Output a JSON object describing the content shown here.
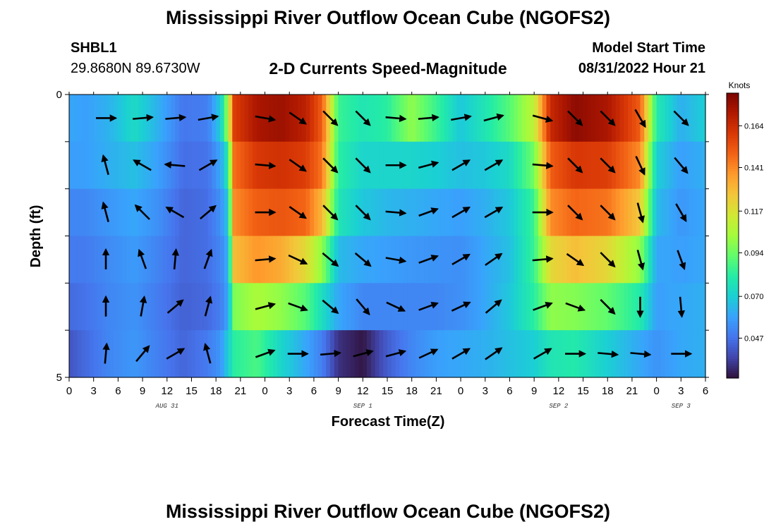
{
  "page": {
    "title": "Mississippi River Outflow Ocean Cube (NGOFS2)",
    "footer_title": "Mississippi River Outflow Ocean Cube (NGOFS2)",
    "station": "SHBL1",
    "location": "29.8680N  89.6730W",
    "plot_title": "2-D Currents Speed-Magnitude",
    "model_start_label": "Model Start Time",
    "model_start_value": "08/31/2022 Hour 21"
  },
  "colors": {
    "colormap": [
      "#30123b",
      "#4145ab",
      "#4675ed",
      "#39a2fc",
      "#1bcfd4",
      "#24eca6",
      "#61fc6c",
      "#a4fc3b",
      "#d1e834",
      "#f3c63a",
      "#fe9b2d",
      "#f36315",
      "#d93806",
      "#b11901",
      "#7a0402"
    ]
  },
  "chart_data": {
    "type": "heatmap",
    "xlabel": "Forecast Time(Z)",
    "ylabel": "Depth (ft)",
    "x_ticks": [
      "0",
      "3",
      "6",
      "9",
      "12",
      "15",
      "18",
      "21",
      "0",
      "3",
      "6",
      "9",
      "12",
      "15",
      "18",
      "21",
      "0",
      "3",
      "6",
      "9",
      "12",
      "15",
      "18",
      "21",
      "0",
      "3",
      "6"
    ],
    "date_labels": [
      {
        "label": "AUG 31",
        "hour": 12
      },
      {
        "label": "SEP 1",
        "hour": 36
      },
      {
        "label": "SEP 2",
        "hour": 60
      },
      {
        "label": "SEP 3",
        "hour": 75
      }
    ],
    "xlim": [
      0,
      78
    ],
    "y_tick_labels": [
      "0",
      "5"
    ],
    "ylim": [
      0,
      5
    ],
    "colorbar": {
      "title": "Knots",
      "tick_labels": [
        "0.164",
        "0.141",
        "0.117",
        "0.094",
        "0.070",
        "0.047"
      ],
      "tick_values": [
        0.164,
        0.141,
        0.117,
        0.094,
        0.07,
        0.047
      ],
      "range": [
        0.025,
        0.182
      ]
    },
    "speed_keyframes": [
      {
        "hour": 0,
        "rows": [
          0.06,
          0.058,
          0.052,
          0.049,
          0.045,
          0.04
        ]
      },
      {
        "hour": 2,
        "rows": [
          0.058,
          0.058,
          0.052,
          0.049,
          0.047,
          0.045
        ]
      },
      {
        "hour": 5,
        "rows": [
          0.063,
          0.062,
          0.056,
          0.053,
          0.052,
          0.052
        ]
      },
      {
        "hour": 8,
        "rows": [
          0.074,
          0.066,
          0.06,
          0.057,
          0.055,
          0.056
        ]
      },
      {
        "hour": 11,
        "rows": [
          0.062,
          0.058,
          0.054,
          0.051,
          0.049,
          0.05
        ]
      },
      {
        "hour": 14,
        "rows": [
          0.048,
          0.046,
          0.044,
          0.044,
          0.043,
          0.044
        ]
      },
      {
        "hour": 17,
        "rows": [
          0.05,
          0.047,
          0.046,
          0.046,
          0.045,
          0.049
        ]
      },
      {
        "hour": 18.6,
        "rows": [
          0.07,
          0.06,
          0.055,
          0.052,
          0.05,
          0.056
        ]
      },
      {
        "hour": 19.5,
        "rows": [
          0.105,
          0.08,
          0.068,
          0.062,
          0.06,
          0.07
        ]
      },
      {
        "hour": 20.2,
        "rows": [
          0.158,
          0.146,
          0.14,
          0.128,
          0.097,
          0.082
        ]
      },
      {
        "hour": 23,
        "rows": [
          0.172,
          0.16,
          0.15,
          0.138,
          0.105,
          0.088
        ]
      },
      {
        "hour": 26,
        "rows": [
          0.175,
          0.162,
          0.152,
          0.133,
          0.1,
          0.072
        ]
      },
      {
        "hour": 29,
        "rows": [
          0.168,
          0.158,
          0.148,
          0.12,
          0.09,
          0.06
        ]
      },
      {
        "hour": 31,
        "rows": [
          0.15,
          0.145,
          0.13,
          0.1,
          0.075,
          0.05
        ]
      },
      {
        "hour": 33,
        "rows": [
          0.085,
          0.082,
          0.078,
          0.065,
          0.06,
          0.032
        ]
      },
      {
        "hour": 36,
        "rows": [
          0.078,
          0.072,
          0.068,
          0.06,
          0.052,
          0.026
        ]
      },
      {
        "hour": 39,
        "rows": [
          0.082,
          0.072,
          0.064,
          0.058,
          0.052,
          0.042
        ]
      },
      {
        "hour": 42,
        "rows": [
          0.1,
          0.072,
          0.062,
          0.056,
          0.052,
          0.052
        ]
      },
      {
        "hour": 45,
        "rows": [
          0.085,
          0.07,
          0.06,
          0.055,
          0.052,
          0.058
        ]
      },
      {
        "hour": 48,
        "rows": [
          0.068,
          0.066,
          0.058,
          0.054,
          0.054,
          0.06
        ]
      },
      {
        "hour": 51,
        "rows": [
          0.078,
          0.068,
          0.062,
          0.06,
          0.06,
          0.062
        ]
      },
      {
        "hour": 54,
        "rows": [
          0.09,
          0.074,
          0.068,
          0.066,
          0.068,
          0.066
        ]
      },
      {
        "hour": 57,
        "rows": [
          0.11,
          0.095,
          0.085,
          0.085,
          0.082,
          0.07
        ]
      },
      {
        "hour": 59,
        "rows": [
          0.165,
          0.15,
          0.14,
          0.12,
          0.1,
          0.078
        ]
      },
      {
        "hour": 62,
        "rows": [
          0.178,
          0.16,
          0.148,
          0.128,
          0.098,
          0.08
        ]
      },
      {
        "hour": 66,
        "rows": [
          0.172,
          0.158,
          0.145,
          0.12,
          0.092,
          0.07
        ]
      },
      {
        "hour": 70,
        "rows": [
          0.15,
          0.14,
          0.125,
          0.1,
          0.08,
          0.06
        ]
      },
      {
        "hour": 72,
        "rows": [
          0.08,
          0.07,
          0.065,
          0.06,
          0.058,
          0.055
        ]
      },
      {
        "hour": 75,
        "rows": [
          0.062,
          0.058,
          0.056,
          0.058,
          0.06,
          0.06
        ]
      },
      {
        "hour": 78,
        "rows": [
          0.07,
          0.062,
          0.06,
          0.06,
          0.062,
          0.062
        ]
      }
    ],
    "vectors": [
      {
        "hour": 4.5,
        "dirs_deg": [
          90,
          345,
          345,
          0,
          0,
          5
        ]
      },
      {
        "hour": 9,
        "dirs_deg": [
          85,
          300,
          315,
          340,
          10,
          40
        ]
      },
      {
        "hour": 13,
        "dirs_deg": [
          85,
          275,
          300,
          5,
          50,
          60
        ]
      },
      {
        "hour": 17,
        "dirs_deg": [
          80,
          60,
          50,
          20,
          15,
          345
        ]
      },
      {
        "hour": 24,
        "dirs_deg": [
          100,
          95,
          90,
          85,
          75,
          70
        ]
      },
      {
        "hour": 28,
        "dirs_deg": [
          125,
          125,
          125,
          115,
          110,
          90
        ]
      },
      {
        "hour": 32,
        "dirs_deg": [
          135,
          135,
          135,
          130,
          130,
          85
        ]
      },
      {
        "hour": 36,
        "dirs_deg": [
          135,
          135,
          135,
          130,
          140,
          75
        ]
      },
      {
        "hour": 40,
        "dirs_deg": [
          95,
          90,
          95,
          100,
          115,
          75
        ]
      },
      {
        "hour": 44,
        "dirs_deg": [
          85,
          75,
          70,
          70,
          70,
          65
        ]
      },
      {
        "hour": 48,
        "dirs_deg": [
          80,
          60,
          60,
          60,
          65,
          60
        ]
      },
      {
        "hour": 52,
        "dirs_deg": [
          75,
          60,
          60,
          55,
          50,
          55
        ]
      },
      {
        "hour": 58,
        "dirs_deg": [
          105,
          95,
          90,
          85,
          70,
          60
        ]
      },
      {
        "hour": 62,
        "dirs_deg": [
          135,
          135,
          135,
          125,
          110,
          90
        ]
      },
      {
        "hour": 66,
        "dirs_deg": [
          135,
          135,
          135,
          135,
          135,
          95
        ]
      },
      {
        "hour": 70,
        "dirs_deg": [
          150,
          155,
          165,
          165,
          180,
          95
        ]
      },
      {
        "hour": 75,
        "dirs_deg": [
          135,
          140,
          150,
          160,
          175,
          90
        ]
      }
    ]
  }
}
